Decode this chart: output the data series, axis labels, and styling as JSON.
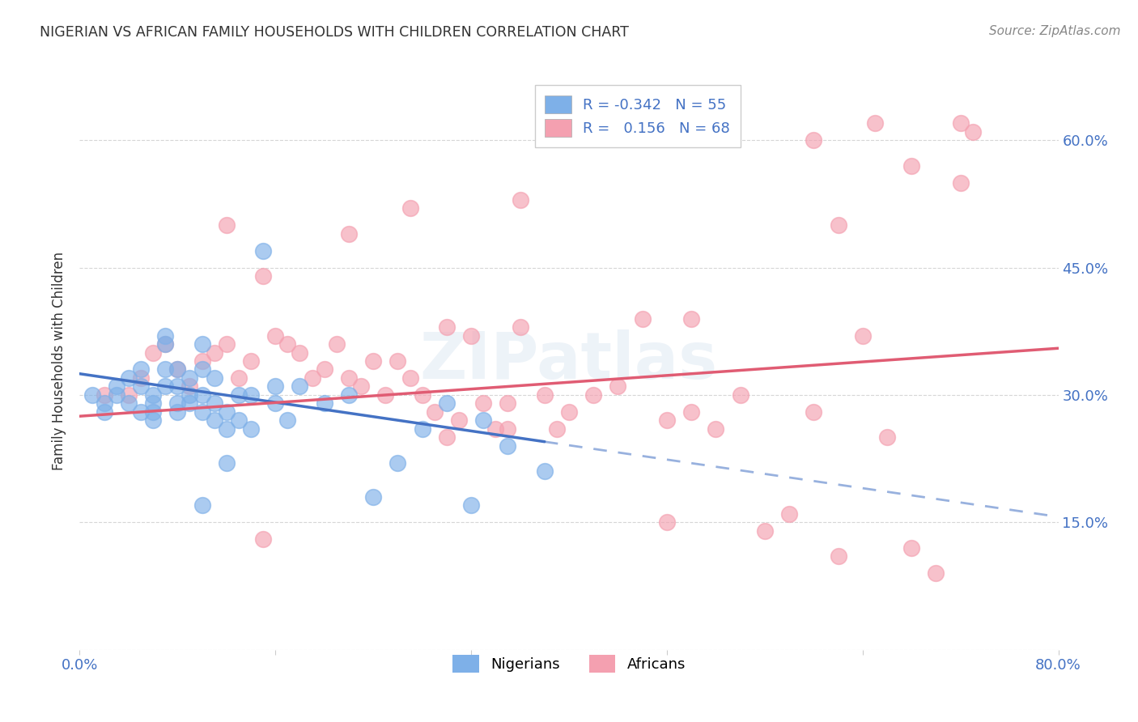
{
  "title": "NIGERIAN VS AFRICAN FAMILY HOUSEHOLDS WITH CHILDREN CORRELATION CHART",
  "source": "Source: ZipAtlas.com",
  "ylabel": "Family Households with Children",
  "watermark": "ZIPatlas",
  "legend_r_nigerian": "R = -0.342",
  "legend_n_nigerian": "N = 55",
  "legend_r_african": "R =  0.156",
  "legend_n_african": "N = 68",
  "xlim": [
    0.0,
    0.8
  ],
  "ylim": [
    0.0,
    0.68
  ],
  "yticks": [
    0.0,
    0.15,
    0.3,
    0.45,
    0.6
  ],
  "ytick_labels": [
    "",
    "15.0%",
    "30.0%",
    "45.0%",
    "60.0%"
  ],
  "xticks": [
    0.0,
    0.16,
    0.32,
    0.48,
    0.64,
    0.8
  ],
  "xtick_labels": [
    "0.0%",
    "",
    "",
    "",
    "",
    "80.0%"
  ],
  "nigerian_color": "#7EB0E8",
  "african_color": "#F4A0B0",
  "nigerian_line_color": "#4472C4",
  "african_line_color": "#E05C73",
  "background_color": "#FFFFFF",
  "grid_color": "#CCCCCC",
  "title_color": "#333333",
  "source_color": "#888888",
  "axis_label_color": "#4472C4",
  "nigerian_x": [
    0.01,
    0.02,
    0.02,
    0.03,
    0.03,
    0.04,
    0.04,
    0.05,
    0.05,
    0.05,
    0.06,
    0.06,
    0.06,
    0.06,
    0.07,
    0.07,
    0.07,
    0.07,
    0.08,
    0.08,
    0.08,
    0.08,
    0.09,
    0.09,
    0.09,
    0.1,
    0.1,
    0.1,
    0.1,
    0.11,
    0.11,
    0.11,
    0.12,
    0.12,
    0.13,
    0.13,
    0.14,
    0.14,
    0.15,
    0.16,
    0.16,
    0.17,
    0.18,
    0.2,
    0.22,
    0.24,
    0.26,
    0.28,
    0.3,
    0.32,
    0.33,
    0.35,
    0.38,
    0.1,
    0.12
  ],
  "nigerian_y": [
    0.3,
    0.29,
    0.28,
    0.31,
    0.3,
    0.32,
    0.29,
    0.31,
    0.28,
    0.33,
    0.3,
    0.29,
    0.28,
    0.27,
    0.33,
    0.36,
    0.37,
    0.31,
    0.33,
    0.31,
    0.29,
    0.28,
    0.32,
    0.3,
    0.29,
    0.36,
    0.33,
    0.3,
    0.28,
    0.32,
    0.29,
    0.27,
    0.28,
    0.26,
    0.3,
    0.27,
    0.3,
    0.26,
    0.47,
    0.31,
    0.29,
    0.27,
    0.31,
    0.29,
    0.3,
    0.18,
    0.22,
    0.26,
    0.29,
    0.17,
    0.27,
    0.24,
    0.21,
    0.17,
    0.22
  ],
  "african_x": [
    0.02,
    0.04,
    0.05,
    0.06,
    0.07,
    0.08,
    0.09,
    0.1,
    0.11,
    0.12,
    0.13,
    0.14,
    0.15,
    0.16,
    0.17,
    0.18,
    0.19,
    0.2,
    0.21,
    0.22,
    0.23,
    0.24,
    0.25,
    0.26,
    0.27,
    0.28,
    0.29,
    0.3,
    0.31,
    0.32,
    0.33,
    0.34,
    0.35,
    0.36,
    0.38,
    0.39,
    0.4,
    0.42,
    0.44,
    0.46,
    0.48,
    0.5,
    0.52,
    0.54,
    0.56,
    0.58,
    0.6,
    0.62,
    0.64,
    0.66,
    0.68,
    0.7,
    0.72,
    0.36,
    0.22,
    0.27,
    0.15,
    0.48,
    0.5,
    0.6,
    0.62,
    0.65,
    0.68,
    0.72,
    0.73,
    0.12,
    0.3,
    0.35
  ],
  "african_y": [
    0.3,
    0.3,
    0.32,
    0.35,
    0.36,
    0.33,
    0.31,
    0.34,
    0.35,
    0.36,
    0.32,
    0.34,
    0.44,
    0.37,
    0.36,
    0.35,
    0.32,
    0.33,
    0.36,
    0.32,
    0.31,
    0.34,
    0.3,
    0.34,
    0.32,
    0.3,
    0.28,
    0.38,
    0.27,
    0.37,
    0.29,
    0.26,
    0.29,
    0.38,
    0.3,
    0.26,
    0.28,
    0.3,
    0.31,
    0.39,
    0.27,
    0.28,
    0.26,
    0.3,
    0.14,
    0.16,
    0.28,
    0.11,
    0.37,
    0.25,
    0.12,
    0.09,
    0.62,
    0.53,
    0.49,
    0.52,
    0.13,
    0.15,
    0.39,
    0.6,
    0.5,
    0.62,
    0.57,
    0.55,
    0.61,
    0.5,
    0.25,
    0.26
  ]
}
